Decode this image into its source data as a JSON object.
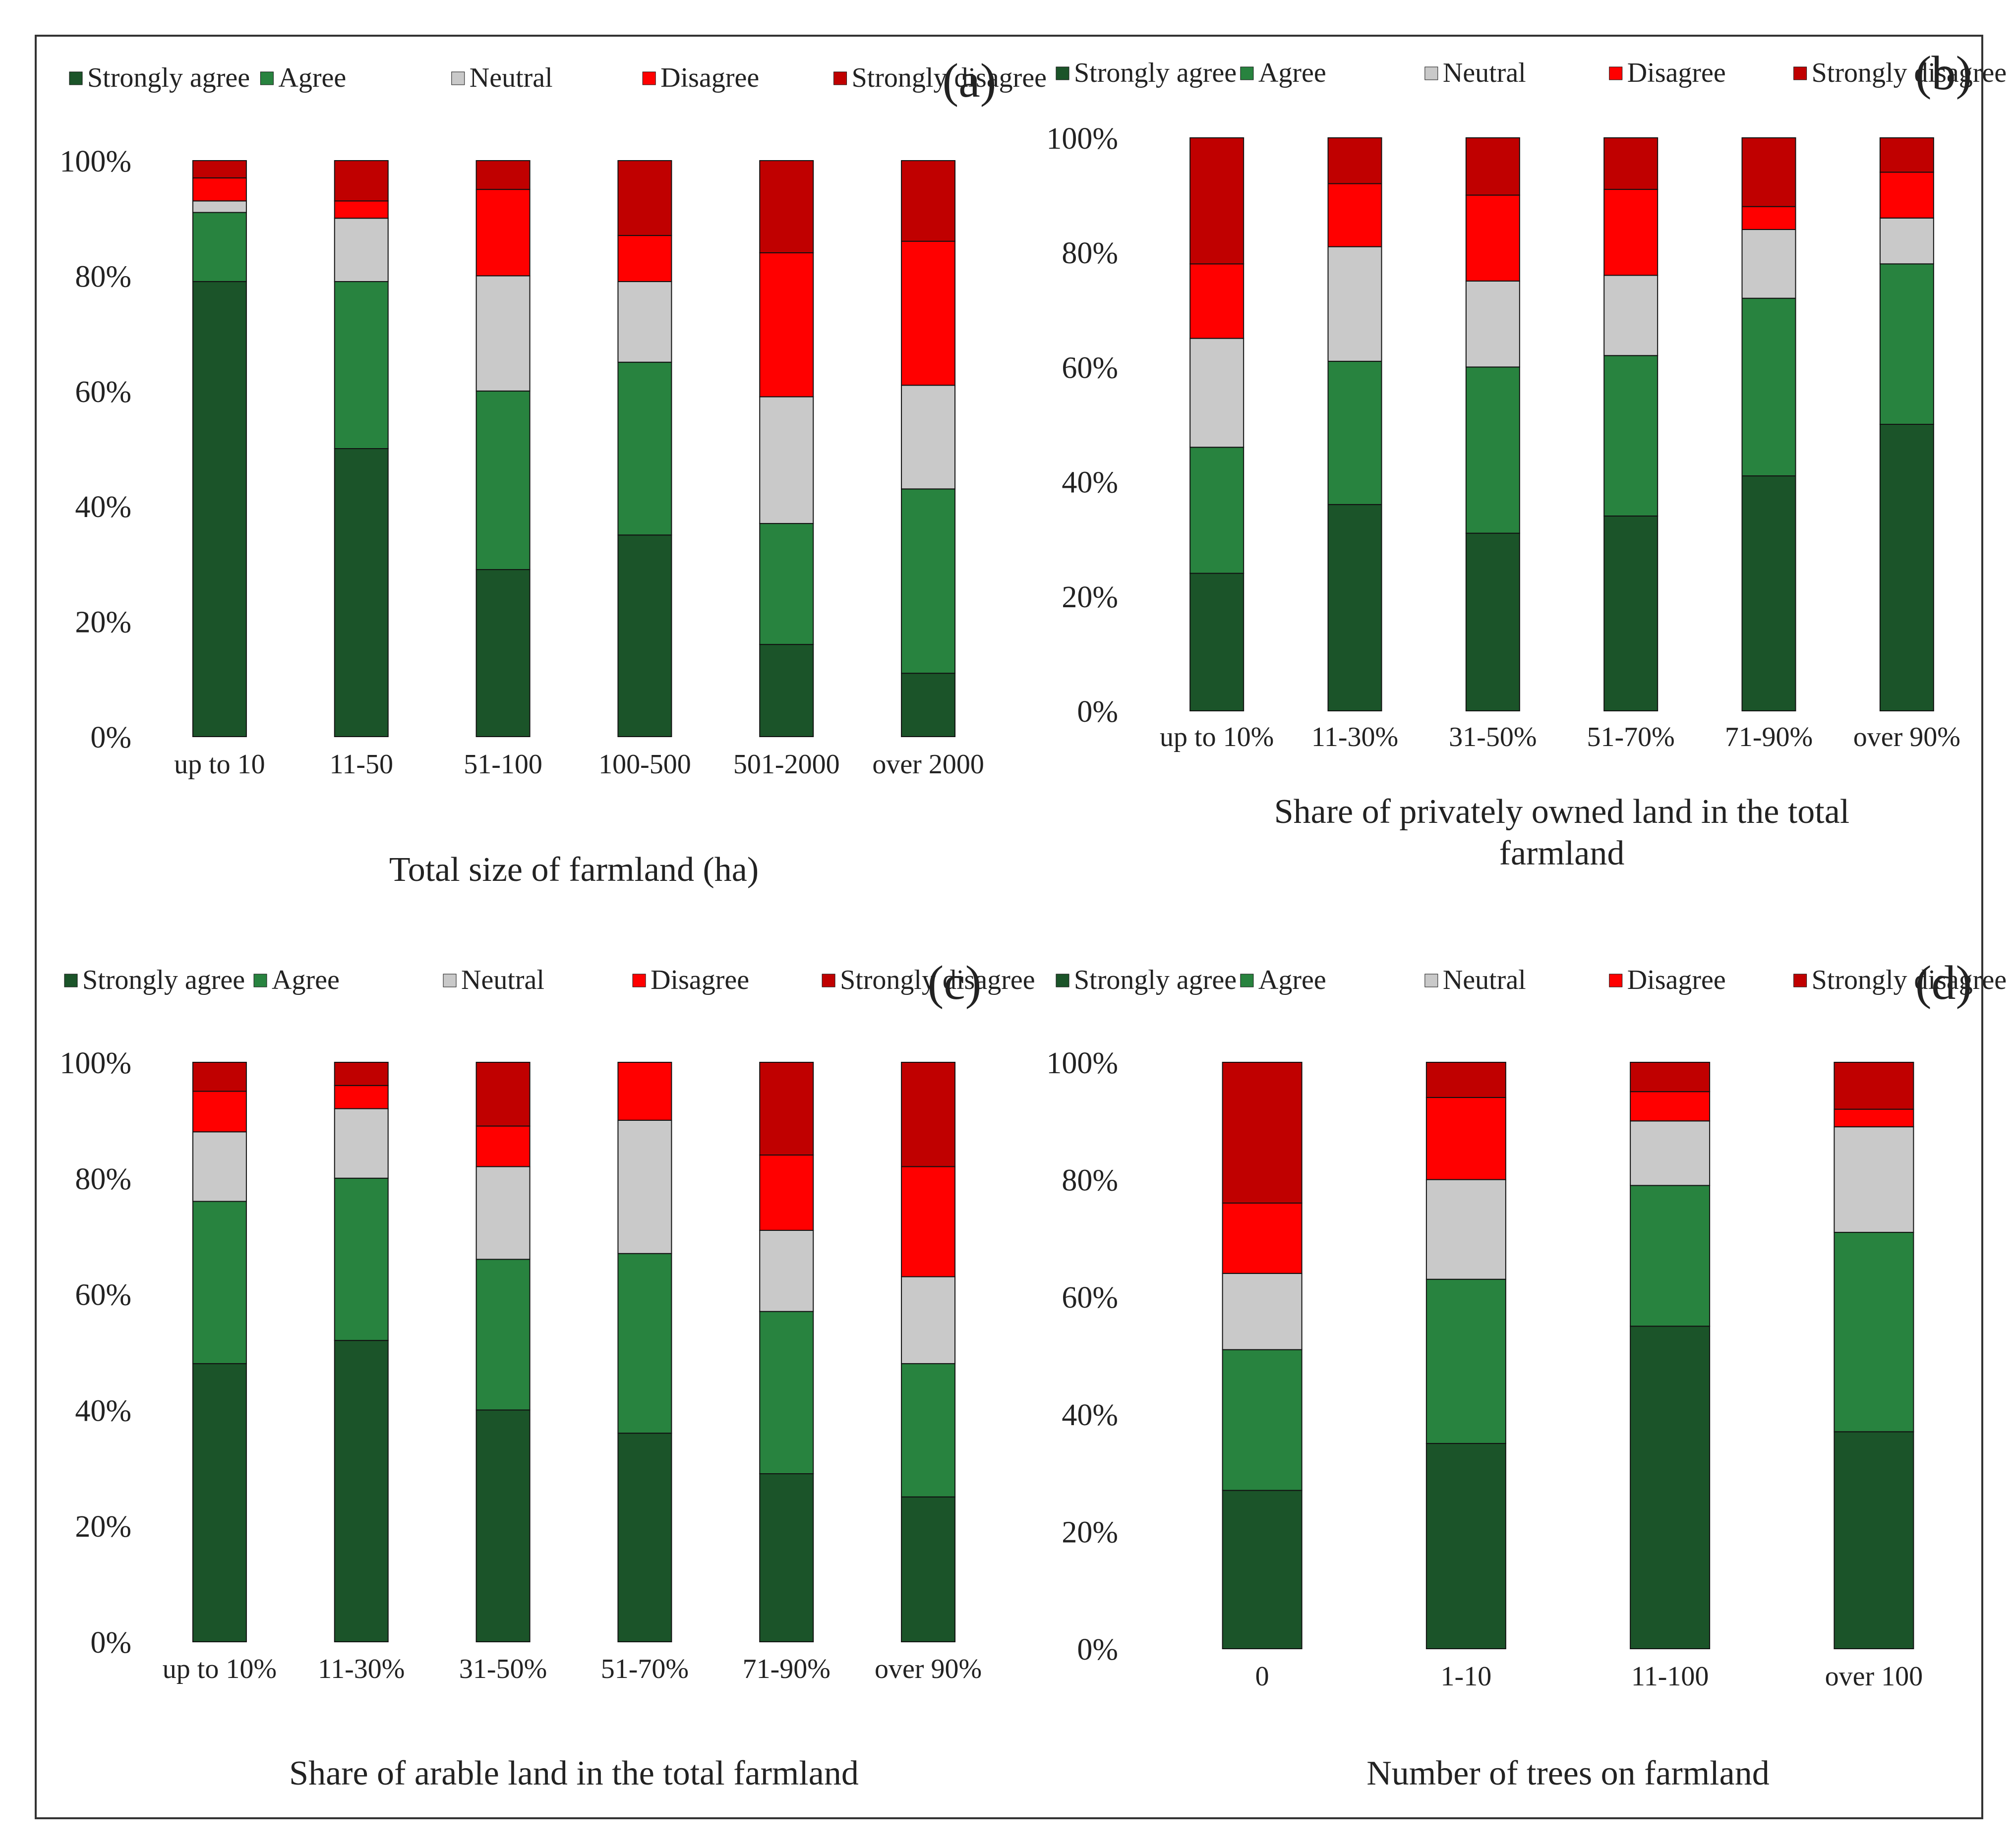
{
  "figure": {
    "legend_labels": [
      "Strongly agree",
      "Agree",
      "Neutral",
      "Disagree",
      "Strongly  disagree"
    ],
    "colors": {
      "strongly_agree": "#1b5429",
      "agree": "#28833f",
      "neutral": "#c9c9c9",
      "disagree": "#ff0000",
      "strongly_disagree": "#c00000",
      "axis_text": "#222222",
      "bar_outline": "#111111",
      "frame": "#333333"
    }
  },
  "chart_data": [
    {
      "panel": "(a)",
      "type": "bar",
      "stacked": true,
      "percent": true,
      "xlabel": "Total size of farmland  (ha)",
      "ylabel": "",
      "ylim": [
        0,
        100
      ],
      "yticks": [
        "0%",
        "20%",
        "40%",
        "60%",
        "80%",
        "100%"
      ],
      "legend_position": "top",
      "categories": [
        "up to 10",
        "11-50",
        "51-100",
        "100-500",
        "501-2000",
        "over 2000"
      ],
      "series": [
        {
          "name": "Strongly agree",
          "values": [
            79,
            50,
            29,
            35,
            16,
            11
          ]
        },
        {
          "name": "Agree",
          "values": [
            12,
            29,
            31,
            30,
            21,
            32
          ]
        },
        {
          "name": "Neutral",
          "values": [
            2,
            11,
            20,
            14,
            22,
            18
          ]
        },
        {
          "name": "Disagree",
          "values": [
            4,
            3,
            15,
            8,
            25,
            25
          ]
        },
        {
          "name": "Strongly  disagree",
          "values": [
            3,
            7,
            5,
            13,
            16,
            14
          ]
        }
      ]
    },
    {
      "panel": "(b)",
      "type": "bar",
      "stacked": true,
      "percent": true,
      "xlabel": "Share of privately  owned land in the total farmland",
      "ylabel": "",
      "ylim": [
        0,
        100
      ],
      "yticks": [
        "0%",
        "20%",
        "40%",
        "60%",
        "80%",
        "100%"
      ],
      "legend_position": "top",
      "categories": [
        "up to 10%",
        "11-30%",
        "31-50%",
        "51-70%",
        "71-90%",
        "over 90%"
      ],
      "series": [
        {
          "name": "Strongly agree",
          "values": [
            24,
            36,
            31,
            34,
            41,
            50
          ]
        },
        {
          "name": "Agree",
          "values": [
            22,
            25,
            29,
            28,
            31,
            28
          ]
        },
        {
          "name": "Neutral",
          "values": [
            19,
            20,
            15,
            14,
            12,
            8
          ]
        },
        {
          "name": "Disagree",
          "values": [
            13,
            11,
            15,
            15,
            4,
            8
          ]
        },
        {
          "name": "Strongly  disagree",
          "values": [
            22,
            8,
            10,
            9,
            12,
            6
          ]
        }
      ]
    },
    {
      "panel": "(c)",
      "type": "bar",
      "stacked": true,
      "percent": true,
      "xlabel": "Share of arable land in the total farmland",
      "ylabel": "",
      "ylim": [
        0,
        100
      ],
      "yticks": [
        "0%",
        "20%",
        "40%",
        "60%",
        "80%",
        "100%"
      ],
      "legend_position": "top",
      "categories": [
        "up to 10%",
        "11-30%",
        "31-50%",
        "51-70%",
        "71-90%",
        "over 90%"
      ],
      "series": [
        {
          "name": "Strongly agree",
          "values": [
            48,
            52,
            40,
            36,
            29,
            25
          ]
        },
        {
          "name": "Agree",
          "values": [
            28,
            28,
            26,
            31,
            28,
            23
          ]
        },
        {
          "name": "Neutral",
          "values": [
            12,
            12,
            16,
            23,
            14,
            15
          ]
        },
        {
          "name": "Disagree",
          "values": [
            7,
            4,
            7,
            10,
            13,
            19
          ]
        },
        {
          "name": "Strongly  disagree",
          "values": [
            5,
            4,
            11,
            0,
            16,
            18
          ]
        }
      ]
    },
    {
      "panel": "(d)",
      "type": "bar",
      "stacked": true,
      "percent": true,
      "xlabel": "Number of trees on farmland",
      "ylabel": "",
      "ylim": [
        0,
        100
      ],
      "yticks": [
        "0%",
        "20%",
        "40%",
        "60%",
        "80%",
        "100%"
      ],
      "legend_position": "top",
      "categories": [
        "0",
        "1-10",
        "11-100",
        "over 100"
      ],
      "series": [
        {
          "name": "Strongly agree",
          "values": [
            27,
            35,
            55,
            37
          ]
        },
        {
          "name": "Agree",
          "values": [
            24,
            28,
            24,
            34
          ]
        },
        {
          "name": "Neutral",
          "values": [
            13,
            17,
            11,
            18
          ]
        },
        {
          "name": "Disagree",
          "values": [
            12,
            14,
            5,
            3
          ]
        },
        {
          "name": "Strongly  disagree",
          "values": [
            24,
            6,
            5,
            8
          ]
        }
      ]
    }
  ]
}
